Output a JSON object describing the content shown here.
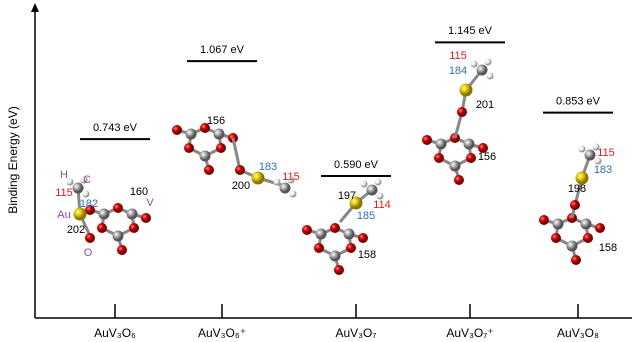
{
  "chart_data": {
    "type": "level",
    "y_label": "Binding Energy (eV)",
    "categories": [
      "AuV₃O₆",
      "AuV₃O₆⁺",
      "AuV₃O₇",
      "AuV₃O₇⁺",
      "AuV₃O₈"
    ],
    "values": [
      0.743,
      1.067,
      0.59,
      1.145,
      0.853
    ],
    "value_labels": [
      "0.743 eV",
      "1.067 eV",
      "0.590 eV",
      "1.145 eV",
      "0.853 eV"
    ],
    "ylim": [
      0,
      1.3
    ],
    "structures": [
      {
        "atoms": [
          "H",
          "C",
          "Au",
          "V",
          "O"
        ],
        "bonds": [
          "115",
          "182",
          "160",
          "202"
        ]
      },
      {
        "bonds": [
          "156",
          "183",
          "200",
          "115"
        ]
      },
      {
        "bonds": [
          "197",
          "114",
          "185",
          "158"
        ]
      },
      {
        "bonds": [
          "115",
          "184",
          "201",
          "156"
        ]
      },
      {
        "bonds": [
          "115",
          "183",
          "198",
          "158"
        ]
      }
    ]
  }
}
